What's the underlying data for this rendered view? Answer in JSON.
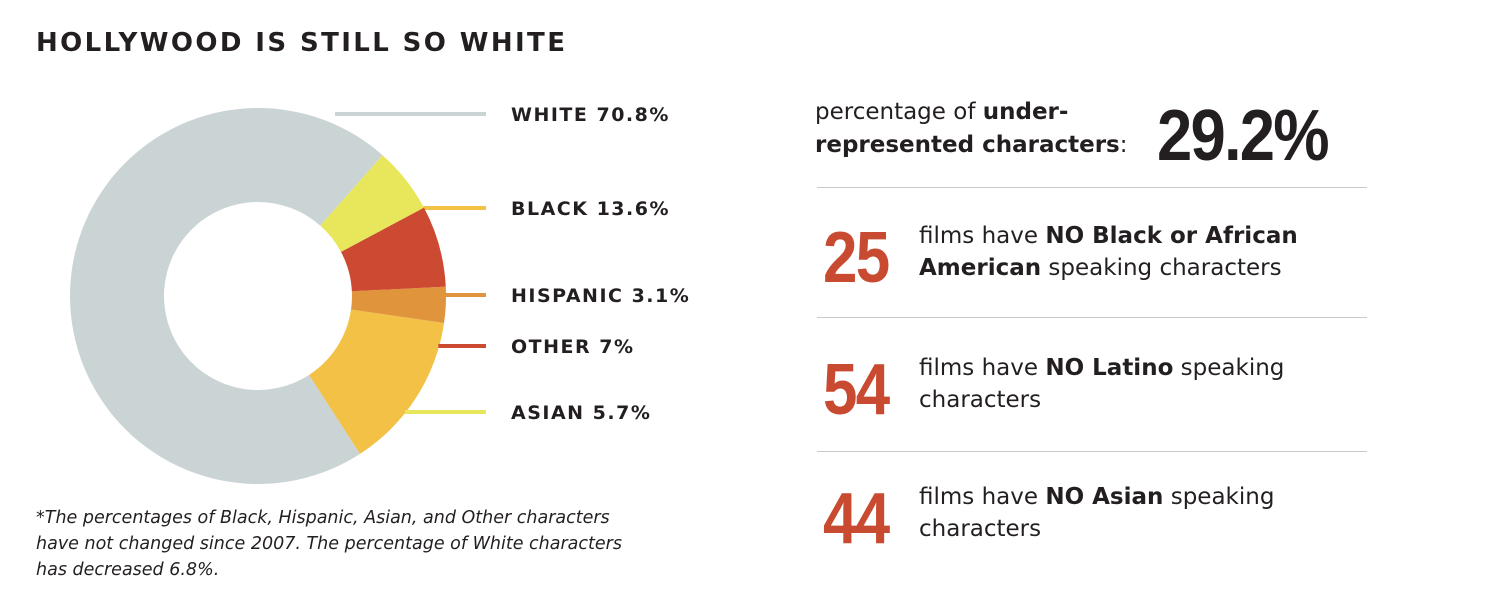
{
  "title": "HOLLYWOOD IS STILL SO WHITE",
  "colors": {
    "white": "#cbd4d5",
    "black": "#f2c145",
    "hispanic": "#e0943c",
    "other": "#cb4a31",
    "asian": "#e8e65a",
    "accent": "#c84b31",
    "text": "#231f20"
  },
  "chart_data": {
    "type": "pie",
    "donut": true,
    "unit": "%",
    "slices": [
      {
        "name": "WHITE",
        "value": 70.8,
        "label": "WHITE 70.8%",
        "color": "#cbd4d5"
      },
      {
        "name": "BLACK",
        "value": 13.6,
        "label": "BLACK 13.6%",
        "color": "#f2c145"
      },
      {
        "name": "HISPANIC",
        "value": 3.1,
        "label": "HISPANIC 3.1%",
        "color": "#e0943c"
      },
      {
        "name": "OTHER",
        "value": 7,
        "label": "OTHER 7%",
        "color": "#cb4a31"
      },
      {
        "name": "ASIAN",
        "value": 5.7,
        "label": "ASIAN 5.7%",
        "color": "#e8e65a"
      }
    ]
  },
  "footnote": {
    "line1": "*The percentages of Black, Hispanic, Asian, and Other characters",
    "line2": "have not changed since 2007. The percentage of White characters",
    "line3": "has decreased 6.8%."
  },
  "headline": {
    "prefix": "percentage of ",
    "bold1": "under-",
    "bold2": "represented characters",
    "suffix": ":",
    "value": "29.2%"
  },
  "stats": [
    {
      "number": "25",
      "prefix": "films have ",
      "bold1": "NO Black or African",
      "bold2": "American",
      "rest": " speaking characters"
    },
    {
      "number": "54",
      "prefix": "films have ",
      "bold": "NO Latino",
      "suffix": " speaking",
      "line2": "characters"
    },
    {
      "number": "44",
      "prefix": "films have ",
      "bold": "NO Asian",
      "suffix": " speaking",
      "line2": "characters"
    }
  ]
}
